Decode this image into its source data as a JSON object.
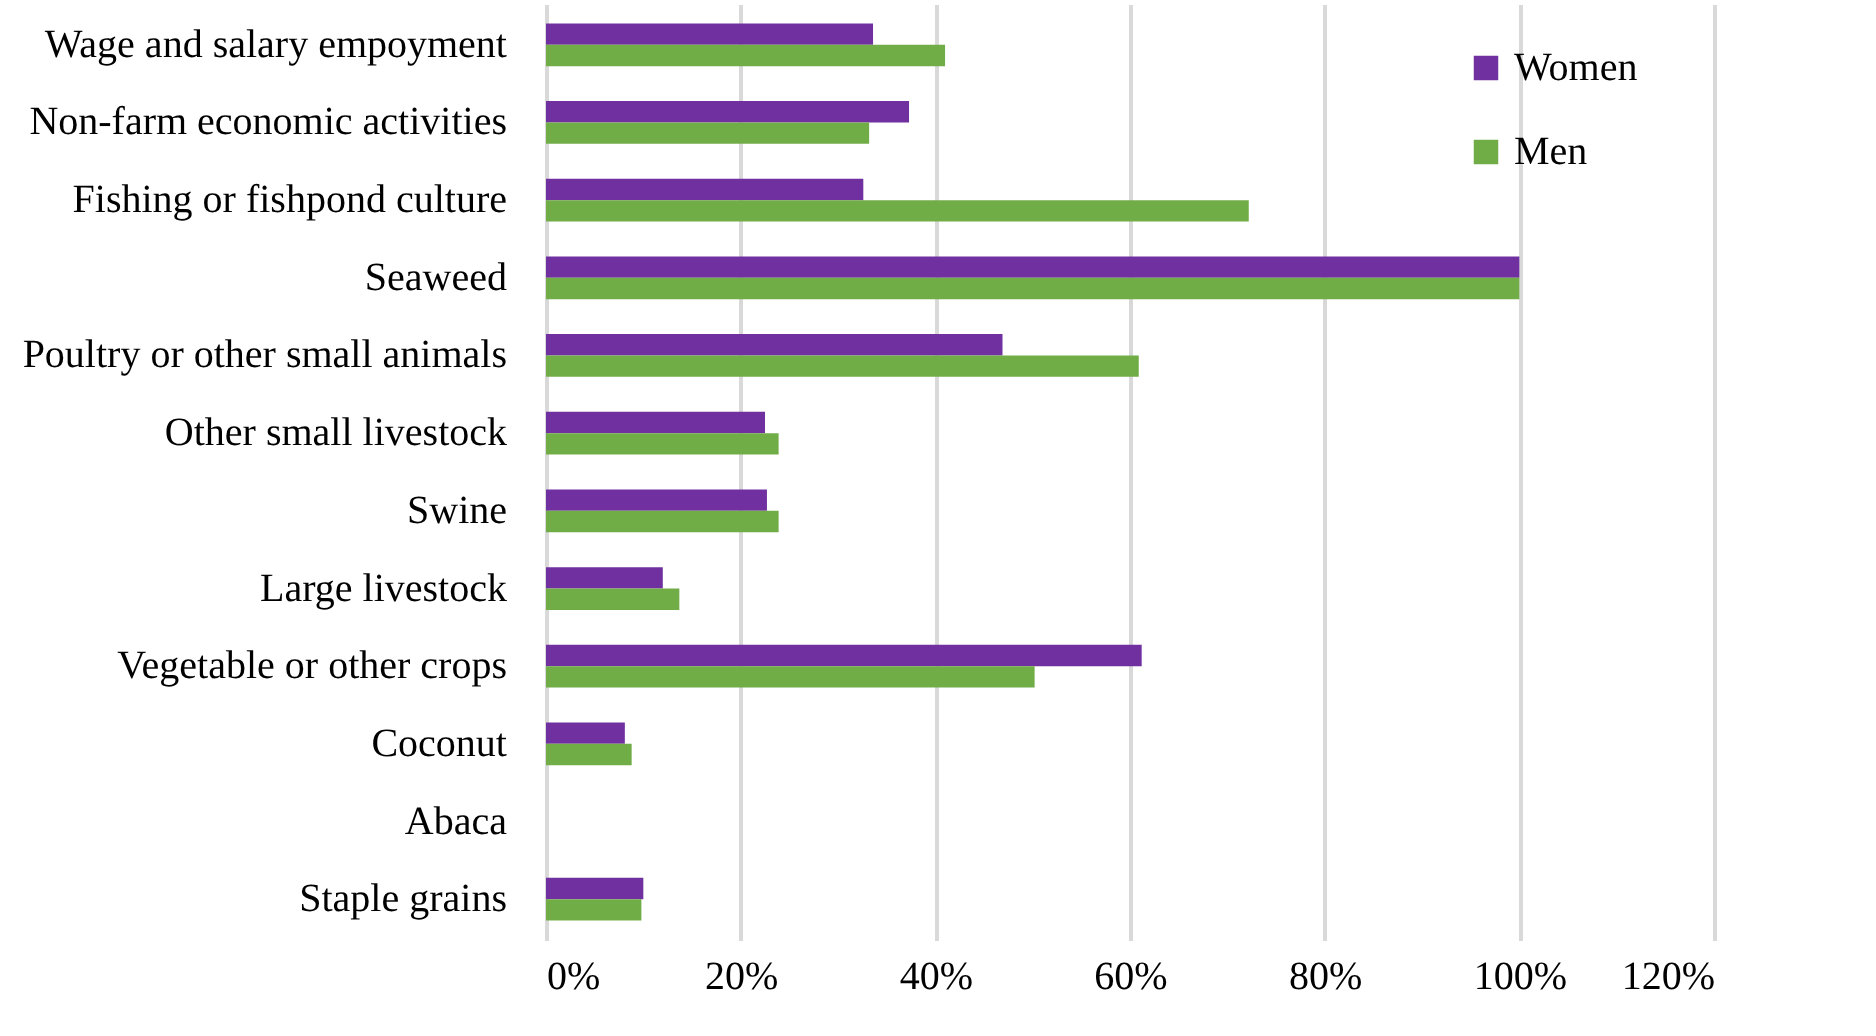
{
  "chart_data": {
    "type": "bar",
    "orientation": "horizontal",
    "categories": [
      "Wage and salary empoyment",
      "Non-farm economic activities",
      "Fishing or fishpond culture",
      "Seaweed",
      "Poultry or other small animals",
      "Other small livestock",
      "Swine",
      "Large livestock",
      "Vegetable or other crops",
      "Coconut",
      "Abaca",
      "Staple grains"
    ],
    "series": [
      {
        "name": "Women",
        "color": "#7030a0",
        "values": [
          33.6,
          37.3,
          32.6,
          100,
          46.9,
          22.5,
          22.7,
          12.0,
          61.2,
          8.1,
          0,
          10.0
        ]
      },
      {
        "name": "Men",
        "color": "#70ad47",
        "values": [
          41.0,
          33.2,
          72.2,
          100,
          60.9,
          23.9,
          23.9,
          13.7,
          50.2,
          8.8,
          0,
          9.8
        ]
      }
    ],
    "xlim": [
      0,
      120
    ],
    "xticks": [
      {
        "value": 0,
        "label": "0%"
      },
      {
        "value": 20,
        "label": "20%"
      },
      {
        "value": 40,
        "label": "40%"
      },
      {
        "value": 60,
        "label": "60%"
      },
      {
        "value": 80,
        "label": "80%"
      },
      {
        "value": 100,
        "label": "100%"
      },
      {
        "value": 120,
        "label": "120%"
      }
    ],
    "grid": "x",
    "legend": "top right"
  }
}
